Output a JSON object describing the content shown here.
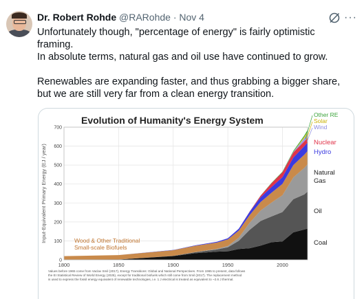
{
  "post": {
    "author_name": "Dr. Robert Rohde",
    "handle": "@RARohde",
    "separator": "·",
    "date": "Nov 4",
    "more_label": "···",
    "paragraphs": [
      "Unfortunately though, \"percentage of energy\" is fairly optimistic framing.",
      "In absolute terms, natural gas and oil use have continued to grow.",
      "Renewables are expanding faster, and thus grabbing a bigger share, but we are still very far from a clean energy transition."
    ]
  },
  "icons": {
    "avatar": "profile-photo",
    "grok": "grok-icon",
    "more": "more-icon"
  },
  "colors": {
    "text": "#0f1419",
    "muted": "#536471",
    "coal": "#111111",
    "oil": "#555555",
    "gas": "#9a9a9a",
    "biofuels": "#c98a4b",
    "hydro": "#3b3be0",
    "nuclear": "#e0344a",
    "wind": "#9a9ae8",
    "solar": "#e8d024",
    "other_re": "#3aa33a"
  },
  "chart_data": {
    "type": "area",
    "title": "Evolution of Humanity's Energy System",
    "ylabel": "Input-Equivalent Primary Energy (EJ / year)",
    "xlabel": "",
    "xlim": [
      1800,
      2023
    ],
    "ylim": [
      0,
      700
    ],
    "x_ticks": [
      "1800",
      "1850",
      "1900",
      "1950",
      "2000"
    ],
    "y_ticks": [
      "0",
      "100",
      "200",
      "300",
      "400",
      "500",
      "600",
      "700"
    ],
    "grid": true,
    "legend_placement": "right",
    "x": [
      1800,
      1850,
      1900,
      1920,
      1940,
      1950,
      1960,
      1970,
      1980,
      1990,
      2000,
      2010,
      2020,
      2023
    ],
    "series": [
      {
        "name": "Coal",
        "values": [
          0.4,
          2,
          20,
          35,
          43,
          45,
          57,
          61,
          75,
          93,
          97,
          145,
          160,
          165
        ]
      },
      {
        "name": "Oil",
        "values": [
          0,
          0,
          1,
          5,
          12,
          21,
          43,
          97,
          130,
          136,
          155,
          175,
          185,
          195
        ]
      },
      {
        "name": "Natural Gas",
        "values": [
          0,
          0,
          0,
          1,
          3,
          7,
          17,
          38,
          55,
          73,
          89,
          115,
          140,
          144
        ]
      },
      {
        "name": "Wood & Other Traditional Small-scale Biofuels",
        "values": [
          19,
          23,
          30,
          33,
          33,
          35,
          37,
          40,
          45,
          52,
          60,
          65,
          70,
          70
        ]
      },
      {
        "name": "Hydro",
        "values": [
          0,
          0,
          1,
          2,
          4,
          6,
          10,
          18,
          25,
          30,
          35,
          40,
          45,
          45
        ]
      },
      {
        "name": "Nuclear",
        "values": [
          0,
          0,
          0,
          0,
          0,
          0,
          0,
          1,
          8,
          20,
          26,
          27,
          25,
          26
        ]
      },
      {
        "name": "Wind",
        "values": [
          0,
          0,
          0,
          0,
          0,
          0,
          0,
          0,
          0,
          0,
          0,
          3,
          16,
          20
        ]
      },
      {
        "name": "Solar",
        "values": [
          0,
          0,
          0,
          0,
          0,
          0,
          0,
          0,
          0,
          0,
          0,
          0,
          8,
          12
        ]
      },
      {
        "name": "Other RE",
        "values": [
          0,
          0,
          0,
          0,
          0,
          0,
          0,
          0,
          1,
          2,
          3,
          5,
          7,
          8
        ]
      }
    ],
    "legend": [
      {
        "label": "Other RE",
        "color": "#3aa33a"
      },
      {
        "label": "Solar",
        "color": "#c9b000"
      },
      {
        "label": "Wind",
        "color": "#8a8ae0"
      },
      {
        "label": "Nuclear",
        "color": "#e0344a"
      },
      {
        "label": "Hydro",
        "color": "#3b3be0"
      },
      {
        "label": "Natural",
        "color": "#222222"
      },
      {
        "label": "Gas",
        "color": "#222222"
      },
      {
        "label": "Oil",
        "color": "#222222"
      },
      {
        "label": "Coal",
        "color": "#222222"
      }
    ],
    "annotation_biofuels": [
      "Wood & Other Traditional",
      "Small-scale Biofuels"
    ],
    "footnote": [
      "Values before 1965 come from Vaclav Smil (2017), Energy Transitions: Global and National Perspectives.  From 1965 to present, data follows",
      "the EI Statistical Review of World Energy (2025), except for traditional biofuels which still come from Smil (2017).  The replacement method",
      "is used to express the fossil energy equivalent of renewable technologies, i.e. 1 J electrical is treated as equivalent to ~2.6 J thermal."
    ]
  }
}
